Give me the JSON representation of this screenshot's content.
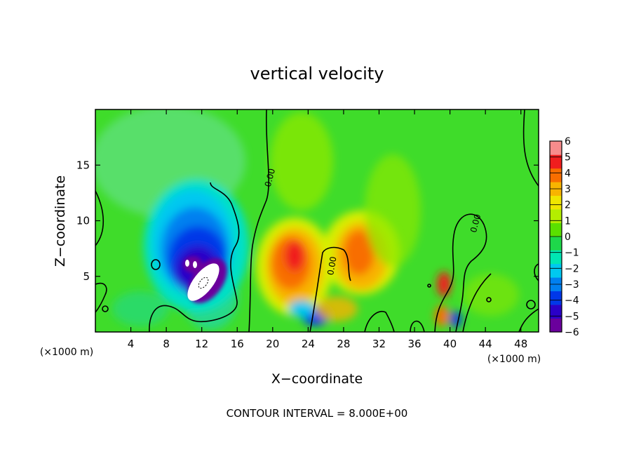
{
  "chart_data": {
    "type": "heatmap",
    "title": "vertical velocity",
    "xlabel": "X−coordinate",
    "ylabel": "Z−coordinate",
    "x_unit_left": "(×1000 m)",
    "x_unit_right": "(×1000 m)",
    "footer": "CONTOUR INTERVAL = 8.000E+00",
    "xlim": [
      0,
      50
    ],
    "ylim": [
      0,
      20
    ],
    "x_ticks": [
      4,
      8,
      12,
      16,
      20,
      24,
      28,
      32,
      36,
      40,
      44,
      48
    ],
    "x_tick_labels": [
      "4",
      "8",
      "12",
      "16",
      "20",
      "24",
      "28",
      "32",
      "36",
      "40",
      "44",
      "48"
    ],
    "y_ticks": [
      5,
      10,
      15
    ],
    "y_tick_labels": [
      "5",
      "10",
      "15"
    ],
    "contour_labels": [
      {
        "text": "0.00",
        "x": 20.0,
        "z": 13.8,
        "rotate": -75
      },
      {
        "text": "0.00",
        "x": 27.0,
        "z": 5.9,
        "rotate": -80
      },
      {
        "text": "0.00",
        "x": 43.2,
        "z": 9.7,
        "rotate": -75
      }
    ],
    "colorbar": {
      "range": [
        -6,
        6
      ],
      "levels": [
        -6,
        -5,
        -4,
        -3,
        -2,
        -1,
        0,
        1,
        2,
        3,
        4,
        5,
        6
      ],
      "labels": [
        "6",
        "5",
        "4",
        "3",
        "2",
        "1",
        "0",
        "−1",
        "−2",
        "−3",
        "−4",
        "−5",
        "−6"
      ],
      "colors": [
        "#6a009c",
        "#2a00c8",
        "#0038e8",
        "#0080f0",
        "#00c8f0",
        "#00e6b4",
        "#1ed84a",
        "#5ae000",
        "#b4ee00",
        "#f0e600",
        "#f8b400",
        "#f86e00",
        "#f01e1e",
        "#f88c8c"
      ]
    },
    "field_features": [
      {
        "kind": "downdraft",
        "x": 11.5,
        "z": 5.5,
        "value": -5.5
      },
      {
        "kind": "downdraft",
        "x": 10.0,
        "z": 8.0,
        "value": -3.0
      },
      {
        "kind": "updraft",
        "x": 22.5,
        "z": 6.0,
        "value": 4.0
      },
      {
        "kind": "updraft",
        "x": 30.0,
        "z": 6.5,
        "value": 3.5
      },
      {
        "kind": "updraft",
        "x": 39.2,
        "z": 4.0,
        "value": 4.0
      },
      {
        "kind": "downdraft",
        "x": 25.0,
        "z": 1.5,
        "value": -5.0
      },
      {
        "kind": "downdraft",
        "x": 40.5,
        "z": 1.2,
        "value": -4.0
      }
    ]
  }
}
